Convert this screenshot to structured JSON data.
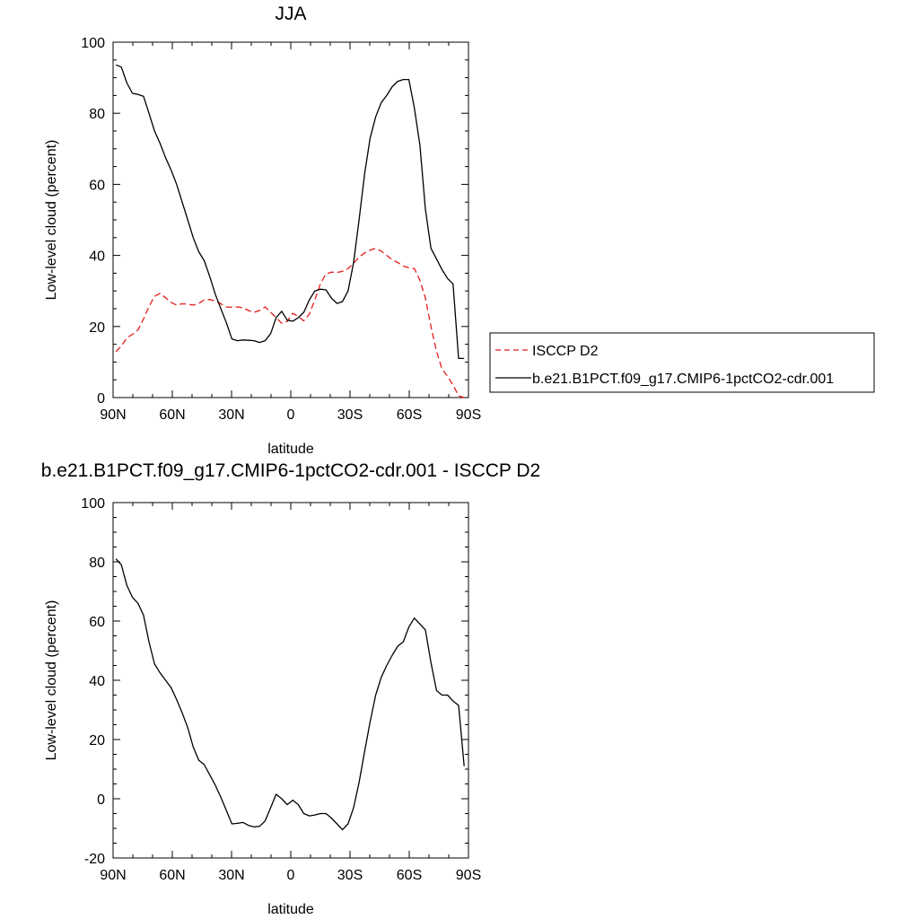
{
  "chart_data": [
    {
      "type": "line",
      "title": "JJA",
      "xlabel": "latitude",
      "ylabel": "Low-level cloud (percent)",
      "xlim": [
        -90,
        90
      ],
      "ylim": [
        0,
        100
      ],
      "x_ticks": [
        {
          "value": -90,
          "label": "90N"
        },
        {
          "value": -60,
          "label": "60N"
        },
        {
          "value": -30,
          "label": "30N"
        },
        {
          "value": 0,
          "label": "0"
        },
        {
          "value": 30,
          "label": "30S"
        },
        {
          "value": 60,
          "label": "60S"
        },
        {
          "value": 90,
          "label": "90S"
        }
      ],
      "y_ticks": [
        0,
        20,
        40,
        60,
        80,
        100
      ],
      "grid": false,
      "legend": "right",
      "series": [
        {
          "name": "ISCCP D2",
          "color": "#e41a1c",
          "style": "dashed",
          "x": [
            -88.6,
            -85.8,
            -83.0,
            -80.2,
            -77.4,
            -74.6,
            -71.8,
            -69.0,
            -66.2,
            -63.4,
            -60.6,
            -57.8,
            -55.0,
            -52.2,
            -49.4,
            -46.6,
            -43.8,
            -41.0,
            -38.2,
            -35.4,
            -32.6,
            -29.8,
            -27.0,
            -24.2,
            -21.4,
            -18.6,
            -15.8,
            -13.0,
            -10.2,
            -7.4,
            -4.6,
            -1.8,
            1.0,
            3.8,
            6.6,
            9.4,
            12.2,
            15.0,
            17.8,
            20.6,
            23.4,
            26.2,
            29.0,
            31.8,
            34.6,
            37.4,
            40.2,
            43.0,
            45.8,
            48.6,
            51.4,
            54.2,
            57.0,
            59.8,
            62.6,
            65.4,
            68.2,
            71.0,
            73.8,
            76.6,
            79.4,
            82.2,
            85.0,
            87.8
          ],
          "y": [
            12.9,
            14.5,
            16.8,
            17.8,
            19.0,
            22.1,
            25.6,
            28.5,
            29.3,
            28.1,
            26.8,
            26.0,
            26.4,
            26.3,
            26.0,
            26.5,
            27.5,
            27.6,
            27.1,
            26.4,
            25.5,
            25.4,
            25.5,
            25.3,
            24.5,
            24.0,
            24.5,
            25.5,
            24.0,
            22.5,
            20.9,
            21.4,
            23.7,
            22.8,
            21.6,
            23.5,
            27.5,
            32.0,
            34.8,
            35.3,
            35.2,
            35.5,
            36.3,
            37.8,
            39.5,
            40.7,
            41.5,
            42.0,
            41.2,
            40.0,
            38.8,
            38.0,
            37.0,
            36.5,
            36.3,
            33.0,
            28.0,
            20.0,
            13.0,
            8.0,
            6.0,
            3.5,
            0.5,
            0.0
          ]
        },
        {
          "name": "b.e21.B1PCT.f09_g17.CMIP6-1pctCO2-cdr.001",
          "color": "#000000",
          "style": "solid",
          "x": [
            -88.6,
            -85.8,
            -83.0,
            -80.2,
            -77.4,
            -74.6,
            -71.8,
            -69.0,
            -66.2,
            -63.4,
            -60.6,
            -57.8,
            -55.0,
            -52.2,
            -49.4,
            -46.6,
            -43.8,
            -41.0,
            -38.2,
            -35.4,
            -32.6,
            -29.8,
            -27.0,
            -24.2,
            -21.4,
            -18.6,
            -15.8,
            -13.0,
            -10.2,
            -7.4,
            -4.6,
            -1.8,
            1.0,
            3.8,
            6.6,
            9.4,
            12.2,
            15.0,
            17.8,
            20.6,
            23.4,
            26.2,
            29.0,
            31.8,
            34.6,
            37.4,
            40.2,
            43.0,
            45.8,
            48.6,
            51.4,
            54.2,
            57.0,
            59.8,
            62.6,
            65.4,
            68.2,
            71.0,
            73.8,
            76.6,
            79.4,
            82.2,
            85.0,
            87.8
          ],
          "y": [
            93.6,
            93.0,
            88.5,
            85.6,
            85.3,
            84.8,
            80.0,
            75.0,
            71.5,
            67.5,
            64.0,
            60.0,
            55.0,
            50.0,
            45.0,
            41.0,
            38.5,
            34.0,
            29.0,
            25.0,
            21.0,
            16.5,
            16.0,
            16.2,
            16.1,
            16.0,
            15.5,
            16.0,
            18.0,
            22.5,
            24.3,
            21.8,
            21.5,
            22.5,
            24.0,
            27.5,
            30.0,
            30.5,
            30.3,
            28.0,
            26.5,
            27.0,
            30.0,
            38.0,
            50.0,
            63.0,
            73.0,
            79.0,
            83.0,
            85.0,
            87.5,
            89.0,
            89.5,
            89.5,
            81.5,
            71.0,
            53.0,
            42.0,
            39.0,
            36.0,
            33.5,
            32.0,
            11.0,
            11.0
          ]
        }
      ]
    },
    {
      "type": "line",
      "title": "b.e21.B1PCT.f09_g17.CMIP6-1pctCO2-cdr.001 - ISCCP D2",
      "xlabel": "latitude",
      "ylabel": "Low-level cloud (percent)",
      "xlim": [
        -90,
        90
      ],
      "ylim": [
        -20,
        100
      ],
      "x_ticks": [
        {
          "value": -90,
          "label": "90N"
        },
        {
          "value": -60,
          "label": "60N"
        },
        {
          "value": -30,
          "label": "30N"
        },
        {
          "value": 0,
          "label": "0"
        },
        {
          "value": 30,
          "label": "30S"
        },
        {
          "value": 60,
          "label": "60S"
        },
        {
          "value": 90,
          "label": "90S"
        }
      ],
      "y_ticks": [
        -20,
        0,
        20,
        40,
        60,
        80,
        100
      ],
      "grid": false,
      "series": [
        {
          "name": "",
          "color": "#000000",
          "style": "solid",
          "x": [
            -88.6,
            -85.8,
            -83.0,
            -80.2,
            -77.4,
            -74.6,
            -71.8,
            -69.0,
            -66.2,
            -63.4,
            -60.6,
            -57.8,
            -55.0,
            -52.2,
            -49.4,
            -46.6,
            -43.8,
            -41.0,
            -38.2,
            -35.4,
            -32.6,
            -29.8,
            -27.0,
            -24.2,
            -21.4,
            -18.6,
            -15.8,
            -13.0,
            -10.2,
            -7.4,
            -4.6,
            -1.8,
            1.0,
            3.8,
            6.6,
            9.4,
            12.2,
            15.0,
            17.8,
            20.6,
            23.4,
            26.2,
            29.0,
            31.8,
            34.6,
            37.4,
            40.2,
            43.0,
            45.8,
            48.6,
            51.4,
            54.2,
            57.0,
            59.8,
            62.6,
            65.4,
            68.2,
            71.0,
            73.8,
            76.6,
            79.4,
            82.2,
            85.0,
            87.8
          ],
          "y": [
            81.0,
            79.0,
            72.0,
            68.0,
            66.0,
            62.0,
            53.0,
            45.5,
            42.5,
            40.0,
            37.5,
            33.5,
            29.0,
            24.0,
            17.5,
            13.0,
            11.5,
            8.0,
            4.5,
            0.5,
            -4.0,
            -8.5,
            -8.3,
            -8.0,
            -9.0,
            -9.5,
            -9.3,
            -7.5,
            -3.0,
            1.5,
            0.0,
            -2.0,
            -0.5,
            -2.0,
            -5.0,
            -5.8,
            -5.5,
            -5.0,
            -5.0,
            -6.5,
            -8.5,
            -10.5,
            -8.5,
            -3.0,
            5.5,
            16.0,
            26.0,
            35.0,
            41.0,
            45.0,
            48.5,
            51.5,
            53.0,
            58.0,
            61.0,
            59.0,
            57.0,
            46.0,
            36.5,
            35.0,
            35.0,
            33.0,
            31.5,
            11.0
          ]
        }
      ]
    }
  ],
  "legend": {
    "entries": [
      {
        "label": "ISCCP D2"
      },
      {
        "label": "b.e21.B1PCT.f09_g17.CMIP6-1pctCO2-cdr.001"
      }
    ]
  }
}
